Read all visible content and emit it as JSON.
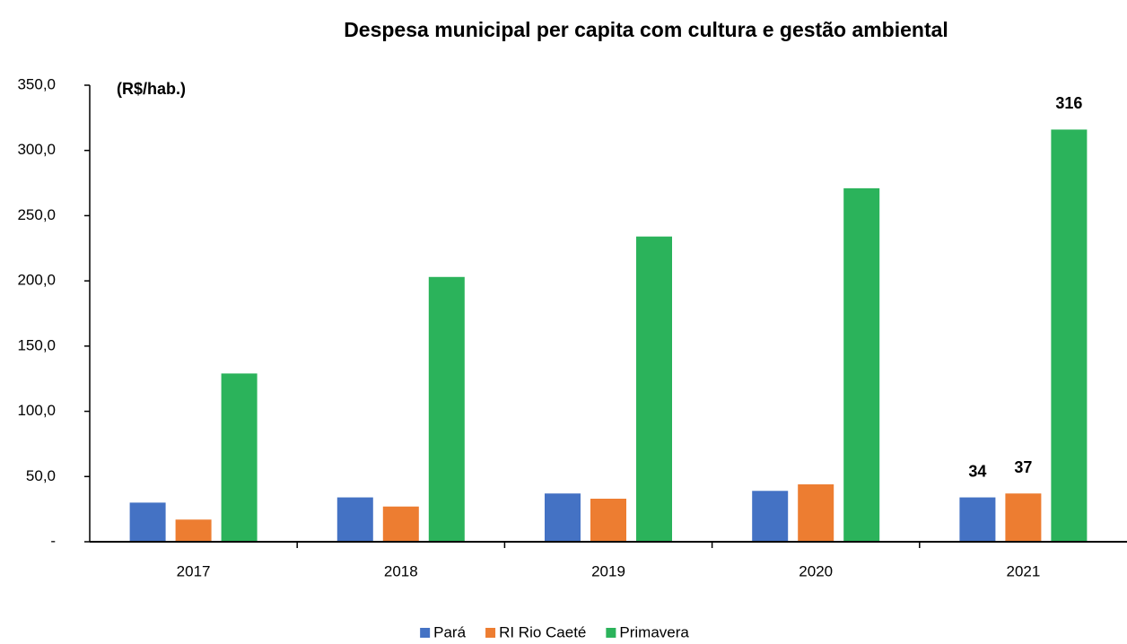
{
  "chart_data": {
    "type": "bar",
    "title": "Despesa municipal per capita com cultura e gestão ambiental",
    "subtitle": "(R$/hab.)",
    "categories": [
      "2017",
      "2018",
      "2019",
      "2020",
      "2021"
    ],
    "series": [
      {
        "name": "Pará",
        "color": "#4472c4",
        "values": [
          30,
          34,
          37,
          39,
          34
        ],
        "value_labels": [
          null,
          null,
          null,
          null,
          "34"
        ]
      },
      {
        "name": "RI Rio Caeté",
        "color": "#ed7d31",
        "values": [
          17,
          27,
          33,
          44,
          37
        ],
        "value_labels": [
          null,
          null,
          null,
          null,
          "37"
        ]
      },
      {
        "name": "Primavera",
        "color": "#2bb35b",
        "values": [
          129,
          203,
          234,
          271,
          316
        ],
        "value_labels": [
          null,
          null,
          null,
          null,
          "316"
        ]
      }
    ],
    "ylim": [
      0,
      350
    ],
    "yticks": [
      {
        "value": 0,
        "label": "-"
      },
      {
        "value": 50,
        "label": "50,0"
      },
      {
        "value": 100,
        "label": "100,0"
      },
      {
        "value": 150,
        "label": "150,0"
      },
      {
        "value": 200,
        "label": "200,0"
      },
      {
        "value": 250,
        "label": "250,0"
      },
      {
        "value": 300,
        "label": "300,0"
      },
      {
        "value": 350,
        "label": "350,0"
      }
    ],
    "legend": "bottom"
  }
}
